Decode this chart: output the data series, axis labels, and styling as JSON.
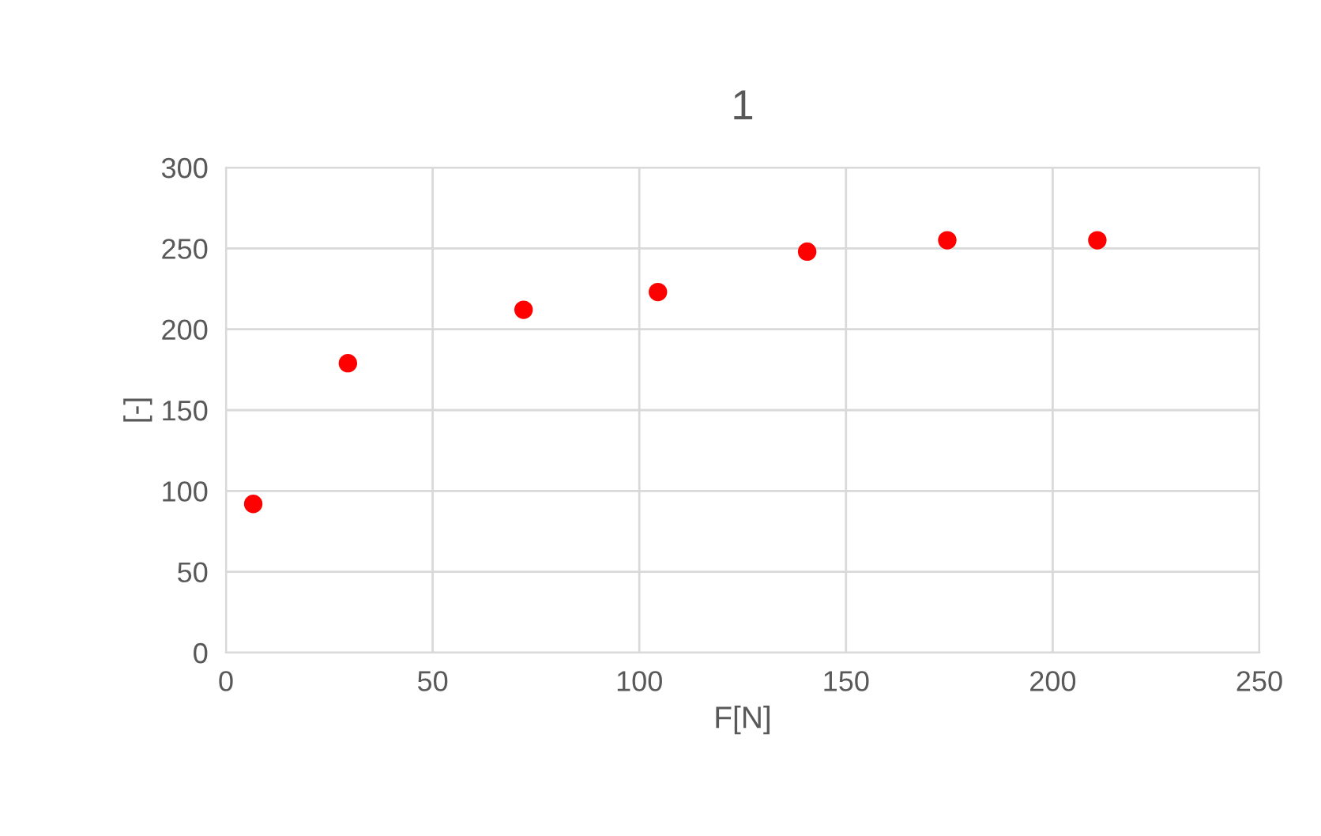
{
  "chart_data": {
    "type": "scatter",
    "title": "1",
    "xlabel": "F[N]",
    "ylabel": "[-]",
    "x": [
      6.6,
      29.5,
      72,
      104.5,
      140.6,
      174.5,
      210.8
    ],
    "series": [
      {
        "color": "#ff0000",
        "values": [
          92,
          179,
          212,
          223,
          248,
          255,
          255
        ]
      }
    ],
    "xlim": [
      0,
      250
    ],
    "xticks": [
      0,
      50,
      100,
      150,
      200,
      250
    ],
    "ylim": [
      0,
      300
    ],
    "yticks": [
      0,
      50,
      100,
      150,
      200,
      250,
      300
    ],
    "grid": true,
    "marker": "circle",
    "legend": false
  }
}
